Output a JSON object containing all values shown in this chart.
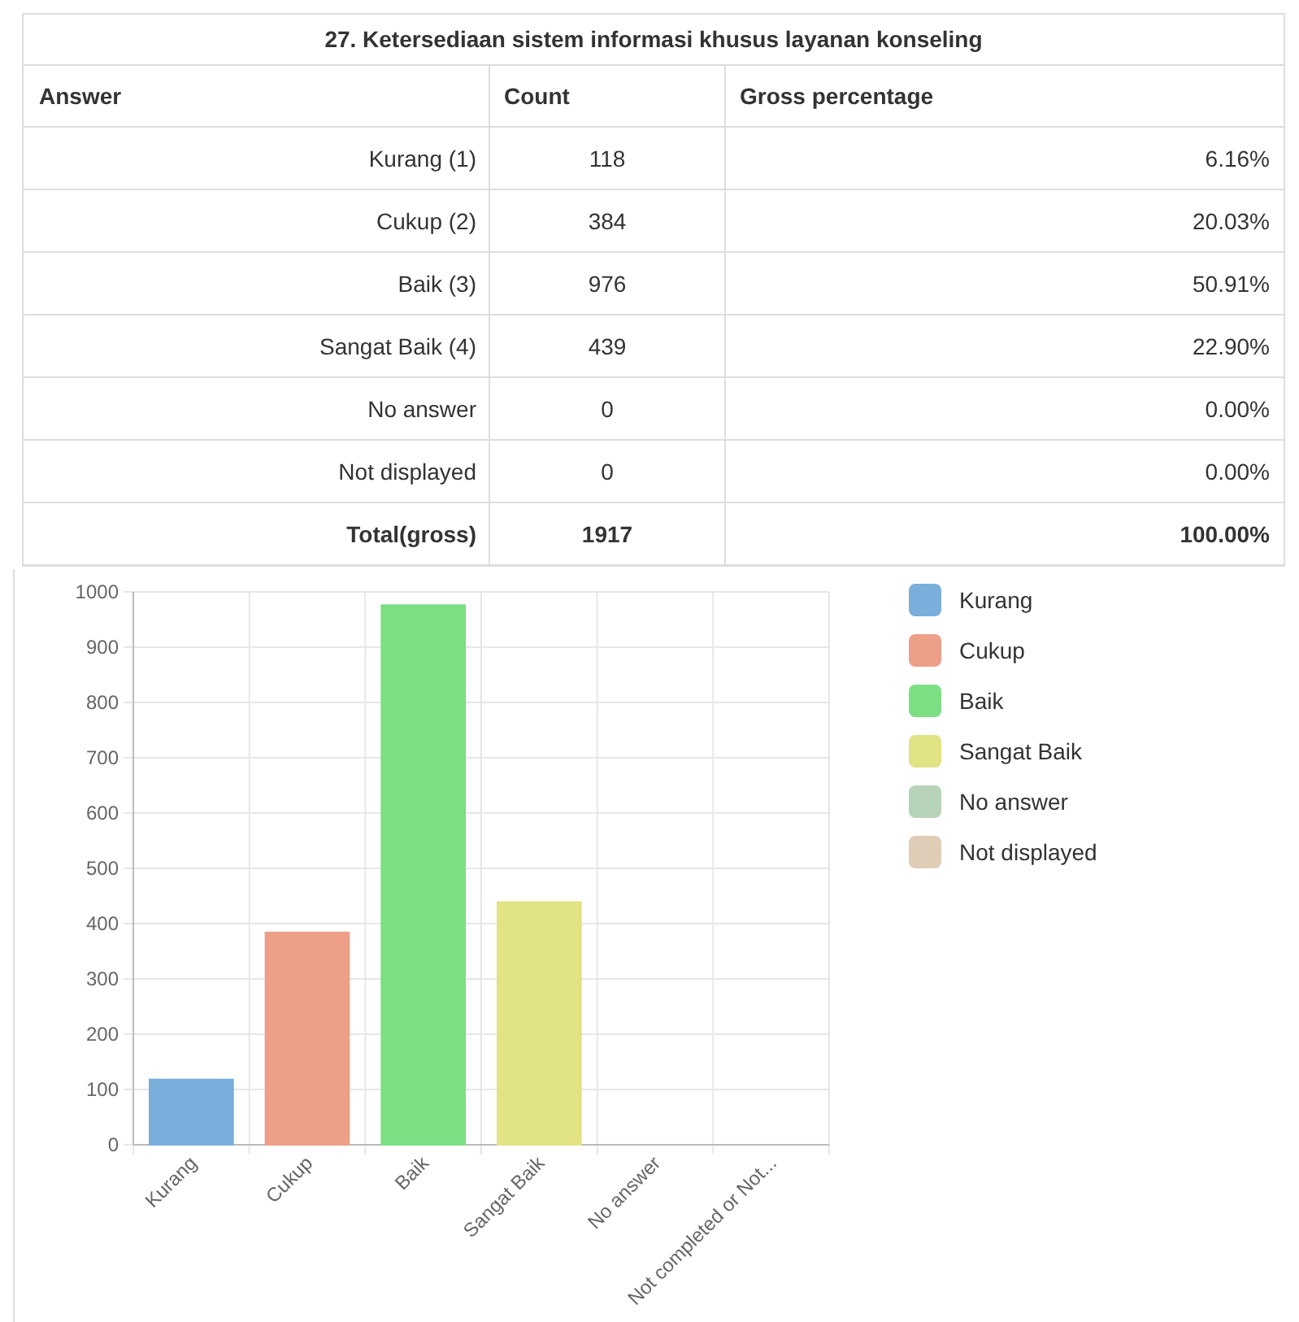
{
  "chart_data": [
    {
      "type": "other",
      "title": "27. Ketersediaan sistem informasi khusus layanan konseling",
      "xlabel": "Answer",
      "data_labels": true,
      "categories": [
        "Kurang (1)",
        "Cukup (2)",
        "Baik (3)",
        "Sangat Baik (4)",
        "No answer",
        "Not displayed",
        "Total(gross)"
      ],
      "series": [
        {
          "name": "Count",
          "values": [
            118,
            384,
            976,
            439,
            0,
            0,
            1917
          ]
        },
        {
          "name": "Gross percentage",
          "values": [
            6.16,
            20.03,
            50.91,
            22.9,
            0,
            0,
            100
          ],
          "value_labels": [
            "6.16%",
            "20.03%",
            "50.91%",
            "22.90%",
            "0.00%",
            "0.00%",
            "100.00%"
          ]
        }
      ]
    },
    {
      "type": "bar",
      "categories": [
        "Kurang",
        "Cukup",
        "Baik",
        "Sangat Baik",
        "No answer",
        "Not completed or Not..."
      ],
      "ylim": [
        0,
        1000
      ],
      "yticks": [
        0,
        100,
        200,
        300,
        400,
        500,
        600,
        700,
        800,
        900,
        1000
      ],
      "grid": true,
      "legend": "right",
      "series": [
        {
          "name": "Kurang",
          "color": "#7aaedb",
          "values": [
            118,
            null,
            null,
            null,
            null,
            null
          ]
        },
        {
          "name": "Cukup",
          "color": "#ed9f88",
          "values": [
            null,
            384,
            null,
            null,
            null,
            null
          ]
        },
        {
          "name": "Baik",
          "color": "#7ddf84",
          "values": [
            null,
            null,
            976,
            null,
            null,
            null
          ]
        },
        {
          "name": "Sangat Baik",
          "color": "#e1e384",
          "values": [
            null,
            null,
            null,
            439,
            null,
            null
          ]
        },
        {
          "name": "No answer",
          "color": "#b7d3b7",
          "values": [
            null,
            null,
            null,
            null,
            0,
            null
          ]
        },
        {
          "name": "Not displayed",
          "color": "#dfcdb7",
          "values": [
            null,
            null,
            null,
            null,
            null,
            0
          ]
        }
      ]
    }
  ]
}
